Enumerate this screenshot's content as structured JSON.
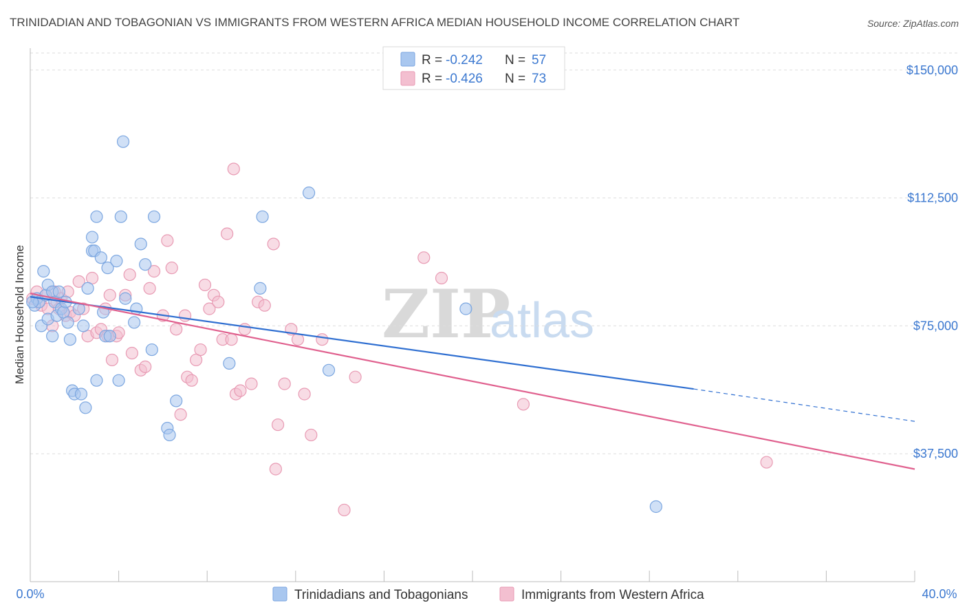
{
  "chart_data": {
    "type": "scatter",
    "title": "TRINIDADIAN AND TOBAGONIAN VS IMMIGRANTS FROM WESTERN AFRICA MEDIAN HOUSEHOLD INCOME CORRELATION CHART",
    "source": "Source: ZipAtlas.com",
    "ylabel": "Median Household Income",
    "xlim": [
      0,
      40
    ],
    "ylim": [
      0,
      155000
    ],
    "x_ticks": [
      "0.0%",
      "40.0%"
    ],
    "y_ticks": [
      {
        "value": 37500,
        "label": "$37,500"
      },
      {
        "value": 75000,
        "label": "$75,000"
      },
      {
        "value": 112500,
        "label": "$112,500"
      },
      {
        "value": 150000,
        "label": "$150,000"
      }
    ],
    "legend": {
      "r_label": "R =",
      "n_label": "N =",
      "entries": [
        {
          "r": "-0.242",
          "n": "57"
        },
        {
          "r": "-0.426",
          "n": "73"
        }
      ]
    },
    "series": [
      {
        "name": "Trinidadians and Tobagonians",
        "color": "#7ba6e0",
        "fill": "#a9c7ef",
        "line_color": "#2f6fd1",
        "trend": {
          "x0": 0,
          "y0": 83500,
          "x1": 30,
          "y1": 56500,
          "dash_x1": 40,
          "dash_y1": 47000
        },
        "points": [
          [
            0.2,
            81000
          ],
          [
            0.3,
            83000
          ],
          [
            0.4,
            82000
          ],
          [
            0.5,
            75000
          ],
          [
            0.6,
            91000
          ],
          [
            0.7,
            84000
          ],
          [
            0.8,
            87000
          ],
          [
            0.8,
            77000
          ],
          [
            1.0,
            85000
          ],
          [
            1.0,
            72000
          ],
          [
            1.1,
            82000
          ],
          [
            1.2,
            78000
          ],
          [
            1.3,
            85000
          ],
          [
            1.4,
            80000
          ],
          [
            1.5,
            79000
          ],
          [
            1.6,
            82000
          ],
          [
            1.7,
            76000
          ],
          [
            1.8,
            71000
          ],
          [
            1.9,
            56000
          ],
          [
            2.0,
            55000
          ],
          [
            2.2,
            80000
          ],
          [
            2.3,
            55000
          ],
          [
            2.4,
            75000
          ],
          [
            2.5,
            51000
          ],
          [
            2.6,
            86000
          ],
          [
            2.8,
            101000
          ],
          [
            2.8,
            97000
          ],
          [
            2.9,
            97000
          ],
          [
            3.0,
            107000
          ],
          [
            3.0,
            59000
          ],
          [
            3.2,
            95000
          ],
          [
            3.3,
            79000
          ],
          [
            3.4,
            72000
          ],
          [
            3.5,
            92000
          ],
          [
            3.6,
            72000
          ],
          [
            3.9,
            94000
          ],
          [
            4.0,
            59000
          ],
          [
            4.1,
            107000
          ],
          [
            4.2,
            129000
          ],
          [
            4.3,
            83000
          ],
          [
            4.7,
            76000
          ],
          [
            4.8,
            80000
          ],
          [
            5.0,
            99000
          ],
          [
            5.2,
            93000
          ],
          [
            5.5,
            68000
          ],
          [
            5.6,
            107000
          ],
          [
            6.2,
            45000
          ],
          [
            6.3,
            43000
          ],
          [
            6.6,
            53000
          ],
          [
            9.0,
            64000
          ],
          [
            10.4,
            86000
          ],
          [
            10.5,
            107000
          ],
          [
            12.6,
            114000
          ],
          [
            13.5,
            62000
          ],
          [
            19.7,
            80000
          ],
          [
            28.3,
            22000
          ],
          [
            0.1,
            82000
          ]
        ]
      },
      {
        "name": "Immigrants from Western Africa",
        "color": "#e89ab3",
        "fill": "#f3bfd0",
        "line_color": "#e0608e",
        "trend": {
          "x0": 0,
          "y0": 84500,
          "x1": 40,
          "y1": 33000
        },
        "points": [
          [
            0.1,
            83000
          ],
          [
            0.3,
            85000
          ],
          [
            0.4,
            82000
          ],
          [
            0.5,
            81000
          ],
          [
            0.7,
            84000
          ],
          [
            0.8,
            80000
          ],
          [
            1.0,
            75000
          ],
          [
            1.1,
            85000
          ],
          [
            1.2,
            82000
          ],
          [
            1.3,
            80000
          ],
          [
            1.4,
            83000
          ],
          [
            1.6,
            78000
          ],
          [
            1.7,
            85000
          ],
          [
            1.8,
            79000
          ],
          [
            2.0,
            78000
          ],
          [
            2.2,
            88000
          ],
          [
            2.4,
            80000
          ],
          [
            2.6,
            72000
          ],
          [
            2.8,
            89000
          ],
          [
            3.0,
            73000
          ],
          [
            3.2,
            74000
          ],
          [
            3.4,
            80000
          ],
          [
            3.5,
            72000
          ],
          [
            3.6,
            84000
          ],
          [
            3.7,
            65000
          ],
          [
            3.9,
            72000
          ],
          [
            4.0,
            73000
          ],
          [
            4.3,
            84000
          ],
          [
            4.5,
            90000
          ],
          [
            4.6,
            67000
          ],
          [
            5.0,
            62000
          ],
          [
            5.2,
            63000
          ],
          [
            5.4,
            86000
          ],
          [
            5.6,
            91000
          ],
          [
            6.0,
            78000
          ],
          [
            6.2,
            100000
          ],
          [
            6.4,
            92000
          ],
          [
            6.6,
            74000
          ],
          [
            6.8,
            49000
          ],
          [
            7.0,
            78000
          ],
          [
            7.1,
            60000
          ],
          [
            7.3,
            59000
          ],
          [
            7.5,
            65000
          ],
          [
            7.7,
            68000
          ],
          [
            7.9,
            87000
          ],
          [
            8.1,
            80000
          ],
          [
            8.3,
            84000
          ],
          [
            8.5,
            82000
          ],
          [
            8.7,
            71000
          ],
          [
            8.9,
            102000
          ],
          [
            9.1,
            71000
          ],
          [
            9.3,
            55000
          ],
          [
            9.5,
            56000
          ],
          [
            9.7,
            74000
          ],
          [
            10.0,
            58000
          ],
          [
            10.3,
            82000
          ],
          [
            10.6,
            81000
          ],
          [
            11.0,
            99000
          ],
          [
            11.2,
            46000
          ],
          [
            11.5,
            58000
          ],
          [
            11.8,
            74000
          ],
          [
            12.1,
            71000
          ],
          [
            12.4,
            55000
          ],
          [
            12.7,
            43000
          ],
          [
            13.2,
            71000
          ],
          [
            14.2,
            21000
          ],
          [
            14.7,
            60000
          ],
          [
            17.8,
            95000
          ],
          [
            18.6,
            89000
          ],
          [
            22.3,
            52000
          ],
          [
            33.3,
            35000
          ],
          [
            9.2,
            121000
          ],
          [
            11.1,
            33000
          ]
        ]
      }
    ],
    "watermark": {
      "zip": "ZIP",
      "atlas": "atlas"
    }
  }
}
